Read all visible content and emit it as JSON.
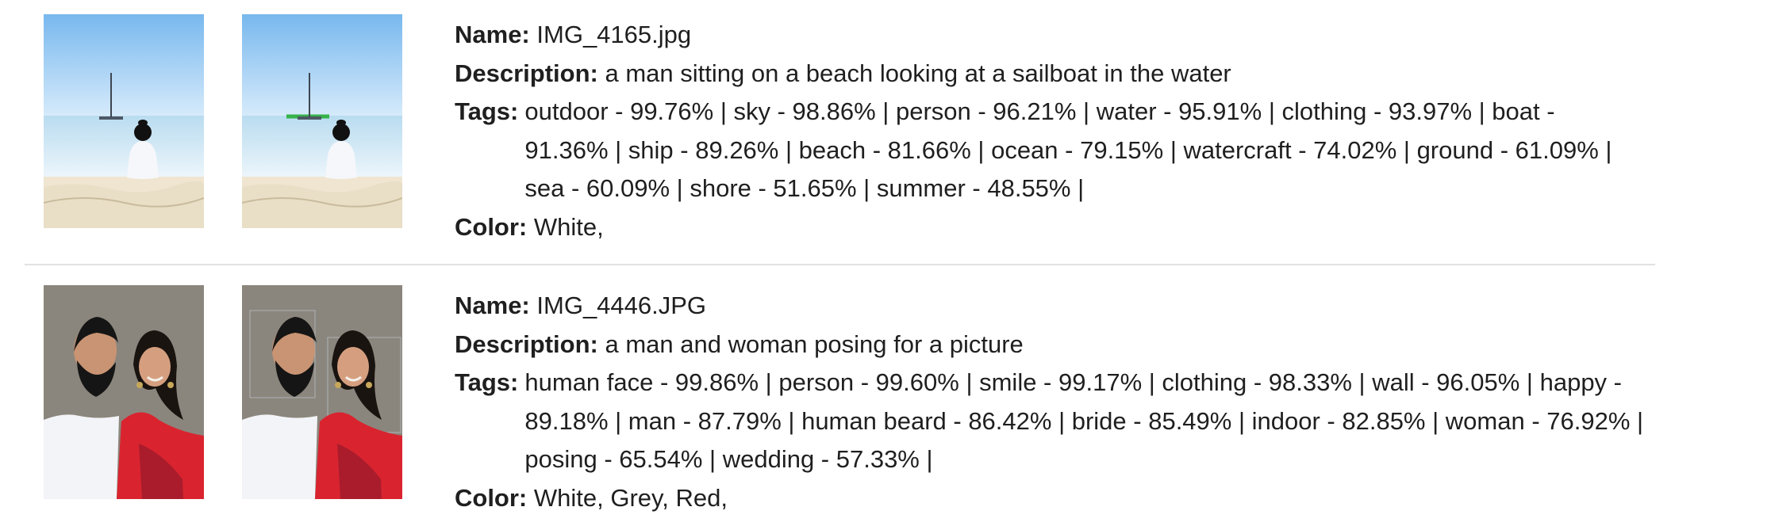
{
  "results": [
    {
      "name_label": "Name:",
      "name": "IMG_4165.jpg",
      "description_label": "Description:",
      "description": "a man sitting on a beach looking at a sailboat in the water",
      "tags_label": "Tags:",
      "tags": "outdoor - 99.76% | sky - 98.86% | person - 96.21% | water - 95.91% | clothing - 93.97% | boat - 91.36% | ship - 89.26% | beach - 81.66% | ocean - 79.15% | watercraft - 74.02% | ground - 61.09% | sea - 60.09% | shore - 51.65% | summer - 48.55% |",
      "color_label": "Color:",
      "color": "White,"
    },
    {
      "name_label": "Name:",
      "name": "IMG_4446.JPG",
      "description_label": "Description:",
      "description": "a man and woman posing for a picture",
      "tags_label": "Tags:",
      "tags": "human face - 99.86% | person - 99.60% | smile - 99.17% | clothing - 98.33% | wall - 96.05% | happy - 89.18% | man - 87.79% | human beard - 86.42% | bride - 85.49% | indoor - 82.85% | woman - 76.92% | posing - 65.54% | wedding - 57.33% |",
      "color_label": "Color:",
      "color": "White, Grey, Red,"
    }
  ],
  "theme": {
    "text": "#1f1f1f",
    "divider": "#e2e2e2",
    "sky_top": "#7fbdf0",
    "sand": "#efe6d3",
    "portrait_red": "#d9242f"
  }
}
